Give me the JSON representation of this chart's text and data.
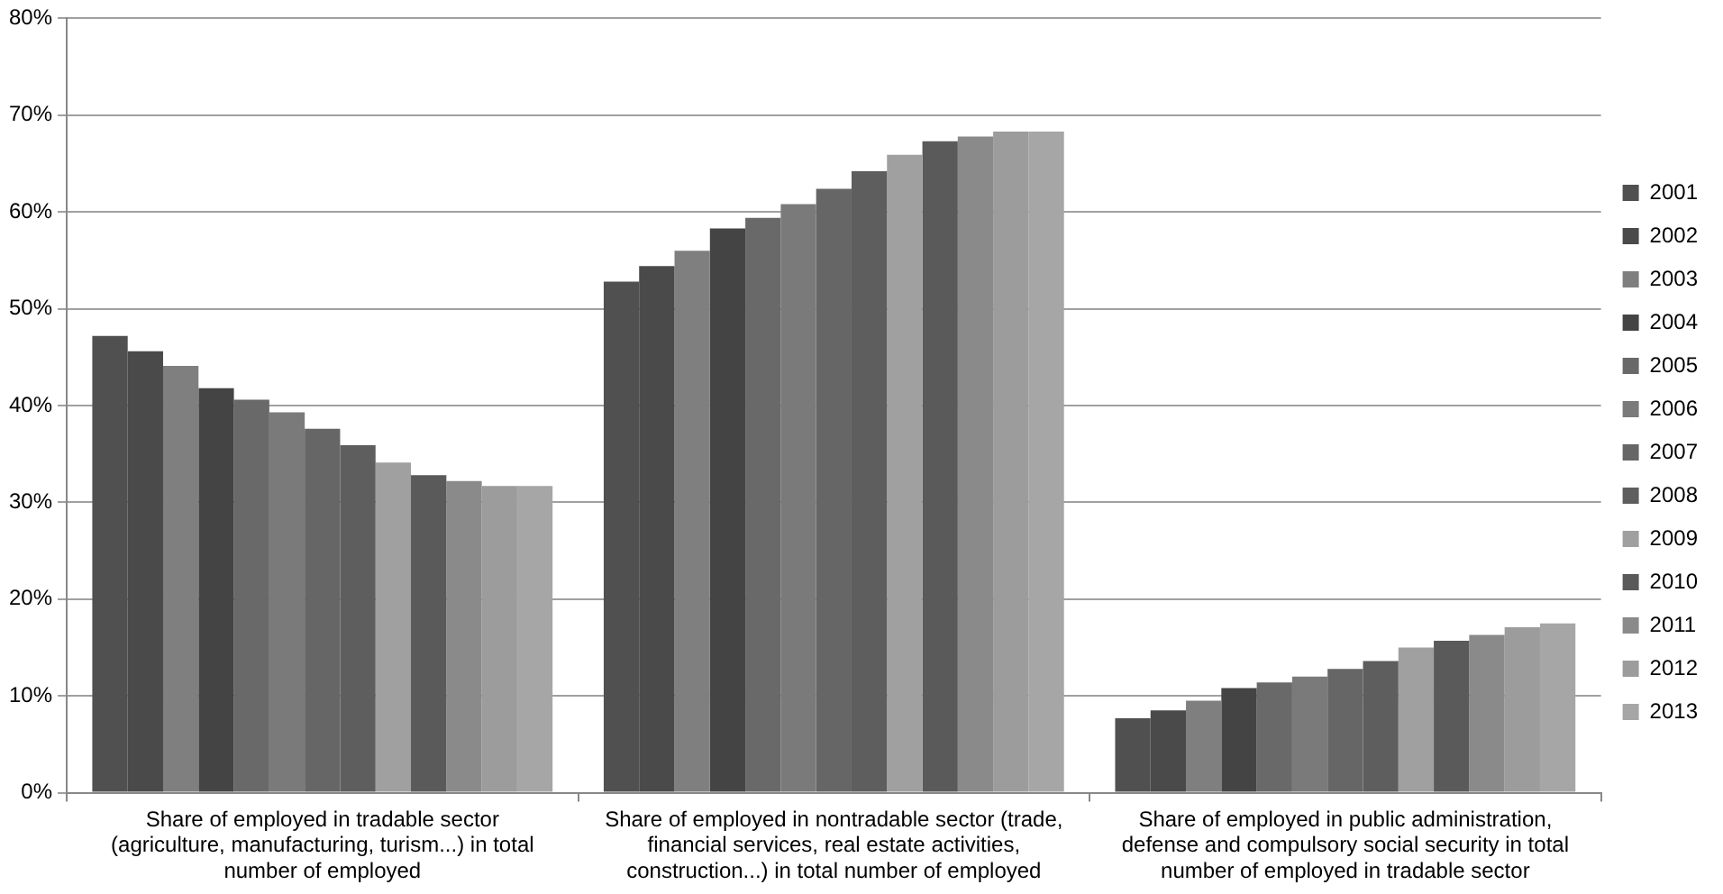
{
  "chart_data": {
    "type": "bar",
    "categories": [
      "Share of employed in tradable sector (agriculture, manufacturing, turism...) in total number of employed",
      "Share of employed in nontradable sector (trade, financial services, real estate activities, construction...) in total number of employed",
      "Share of employed in public administration, defense and compulsory social security in total number of employed in tradable sector"
    ],
    "series": [
      {
        "name": "2001",
        "color": "#505050",
        "values": [
          47.2,
          52.8,
          7.7
        ]
      },
      {
        "name": "2002",
        "color": "#4a4a4a",
        "values": [
          45.6,
          54.4,
          8.5
        ]
      },
      {
        "name": "2003",
        "color": "#7f7f7f",
        "values": [
          44.1,
          56.0,
          9.5
        ]
      },
      {
        "name": "2004",
        "color": "#444444",
        "values": [
          41.8,
          58.3,
          10.8
        ]
      },
      {
        "name": "2005",
        "color": "#696969",
        "values": [
          40.6,
          59.4,
          11.4
        ]
      },
      {
        "name": "2006",
        "color": "#7a7a7a",
        "values": [
          39.3,
          60.8,
          12.0
        ]
      },
      {
        "name": "2007",
        "color": "#666666",
        "values": [
          37.6,
          62.4,
          12.8
        ]
      },
      {
        "name": "2008",
        "color": "#5e5e5e",
        "values": [
          35.9,
          64.2,
          13.6
        ]
      },
      {
        "name": "2009",
        "color": "#a0a0a0",
        "values": [
          34.1,
          65.9,
          15.0
        ]
      },
      {
        "name": "2010",
        "color": "#5a5a5a",
        "values": [
          32.8,
          67.3,
          15.7
        ]
      },
      {
        "name": "2011",
        "color": "#8a8a8a",
        "values": [
          32.2,
          67.8,
          16.3
        ]
      },
      {
        "name": "2012",
        "color": "#9c9c9c",
        "values": [
          31.7,
          68.3,
          17.1
        ]
      },
      {
        "name": "2013",
        "color": "#a6a6a6",
        "values": [
          31.7,
          68.3,
          17.5
        ]
      }
    ],
    "ylim": [
      0,
      80
    ],
    "yticks": [
      {
        "value": 0,
        "label": "0%"
      },
      {
        "value": 10,
        "label": "10%"
      },
      {
        "value": 20,
        "label": "20%"
      },
      {
        "value": 30,
        "label": "30%"
      },
      {
        "value": 40,
        "label": "40%"
      },
      {
        "value": 50,
        "label": "50%"
      },
      {
        "value": 60,
        "label": "60%"
      },
      {
        "value": 70,
        "label": "70%"
      },
      {
        "value": 80,
        "label": "80%"
      }
    ],
    "grid": "y",
    "legend": "right"
  }
}
